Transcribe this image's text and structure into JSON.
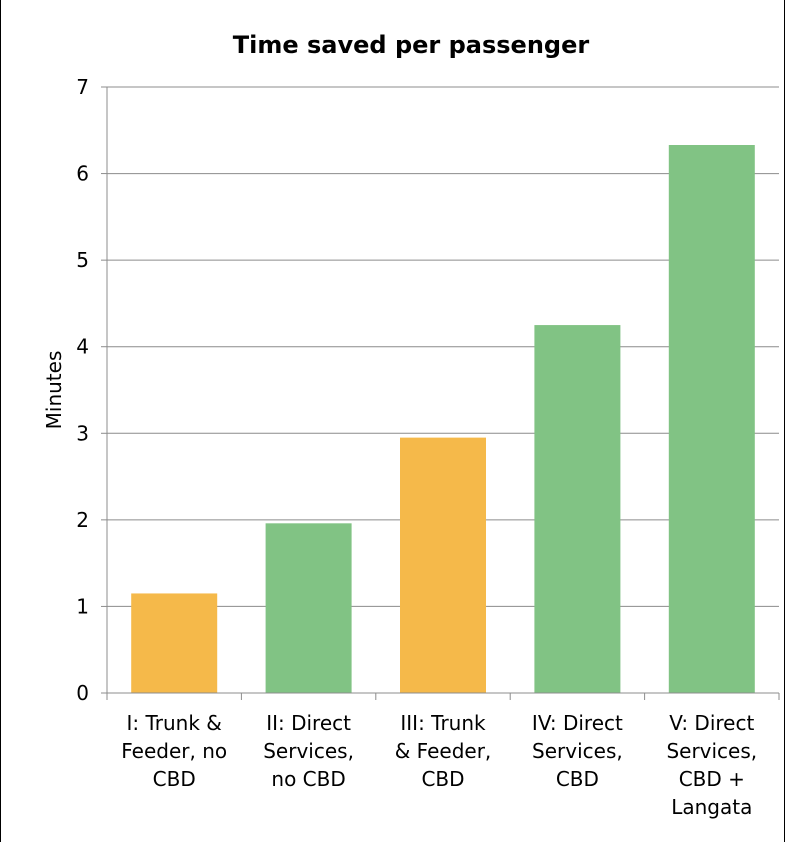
{
  "chart_data": {
    "type": "bar",
    "title": "Time saved per passenger",
    "ylabel": "Minutes",
    "xlabel": "",
    "ylim": [
      0,
      7
    ],
    "yticks": [
      0,
      1,
      2,
      3,
      4,
      5,
      6,
      7
    ],
    "grid": true,
    "legend": "none",
    "categories": [
      [
        "I: Trunk &",
        "Feeder, no",
        "CBD"
      ],
      [
        "II: Direct",
        "Services,",
        "no CBD"
      ],
      [
        "III:  Trunk",
        "& Feeder,",
        "CBD"
      ],
      [
        "IV: Direct",
        "Services,",
        "CBD"
      ],
      [
        "V: Direct",
        "Services,",
        "CBD +",
        "Langata"
      ]
    ],
    "values": [
      1.15,
      1.96,
      2.95,
      4.25,
      6.33
    ],
    "colors": [
      "#f5b94a",
      "#81c384",
      "#f5b94a",
      "#81c384",
      "#81c384"
    ]
  }
}
